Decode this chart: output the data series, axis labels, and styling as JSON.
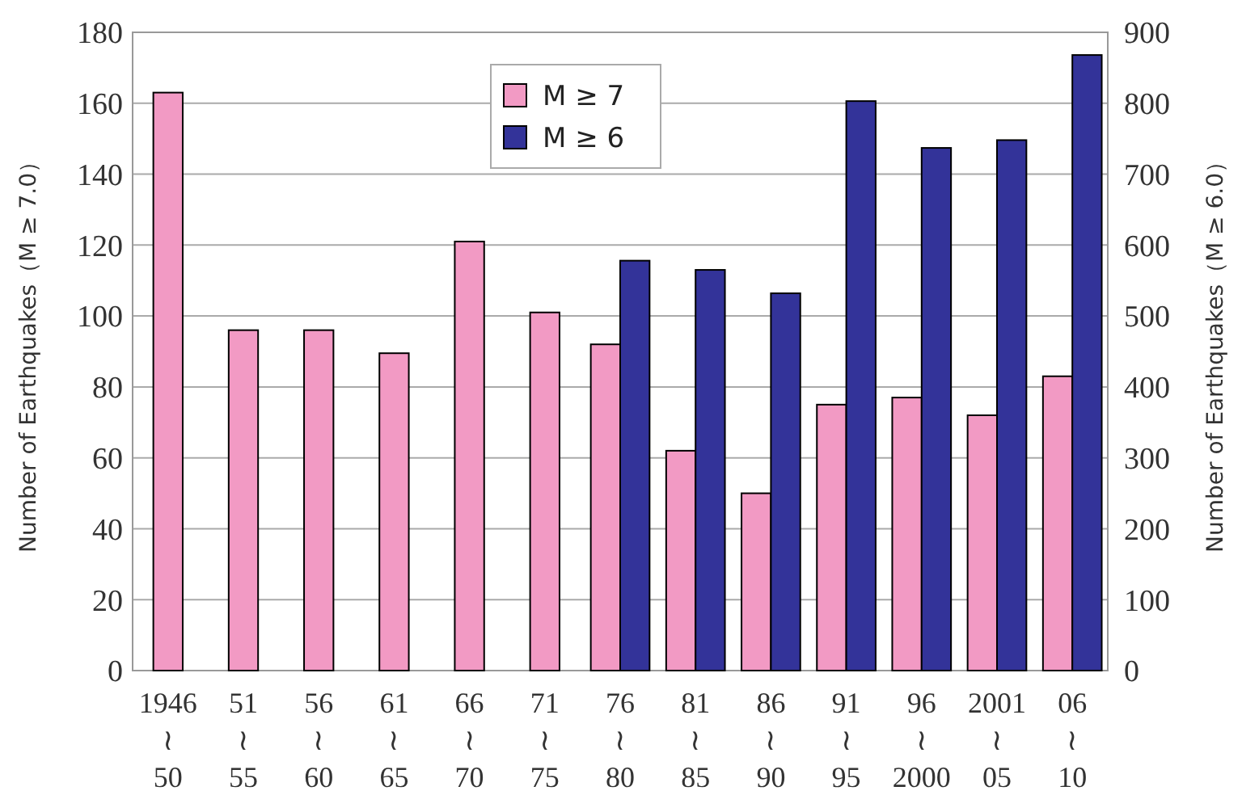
{
  "chart_data": {
    "type": "bar",
    "categories": [
      "1946\n≀\n50",
      "51\n≀\n55",
      "56\n≀\n60",
      "61\n≀\n65",
      "66\n≀\n70",
      "71\n≀\n75",
      "76\n≀\n80",
      "81\n≀\n85",
      "86\n≀\n90",
      "91\n≀\n95",
      "96\n≀\n2000",
      "2001\n≀\n05",
      "06\n≀\n10"
    ],
    "series": [
      {
        "name": "M ≥ 7",
        "color": "#f29ac4",
        "values": [
          163,
          96,
          96,
          89.5,
          121,
          101,
          92,
          62,
          50,
          75,
          77,
          72,
          83
        ]
      },
      {
        "name": "M ≥ 6",
        "color": "#333399",
        "axis": "y2",
        "values": [
          null,
          null,
          null,
          null,
          null,
          null,
          578,
          565,
          532,
          803,
          737,
          748,
          868
        ]
      }
    ],
    "ylabel": "Number of Earthquakes（M ≥ 7.0）",
    "y2label": "Number of Earthquakes（M ≥ 6.0）",
    "ylim": [
      0,
      180
    ],
    "yticks": [
      0,
      20,
      40,
      60,
      80,
      100,
      120,
      140,
      160,
      180
    ],
    "y2lim": [
      0,
      900
    ],
    "y2ticks": [
      0,
      100,
      200,
      300,
      400,
      500,
      600,
      700,
      800,
      900
    ],
    "grid": "y",
    "legend": "top"
  }
}
